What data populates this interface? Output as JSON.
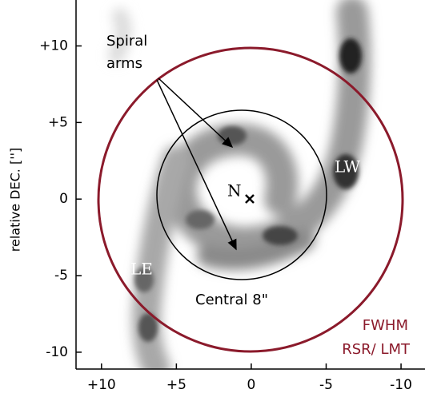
{
  "chart_data": {
    "type": "image",
    "y_label": "relative DEC. ['']",
    "xlim": [
      11.7,
      -11.6
    ],
    "ylim": [
      -11.1,
      13.0
    ],
    "xticks": [
      {
        "value": 10,
        "label": "+10"
      },
      {
        "value": 5,
        "label": "+5"
      },
      0,
      -5,
      -10
    ],
    "yticks": [
      {
        "value": 10,
        "label": "+10"
      },
      {
        "value": 5,
        "label": "+5"
      },
      0,
      -5,
      -10
    ],
    "annotations": [
      "Spiral",
      "arms",
      "Central 8\"",
      "N",
      "LW",
      "LE",
      "FWHM",
      "RSR/ LMT"
    ]
  }
}
